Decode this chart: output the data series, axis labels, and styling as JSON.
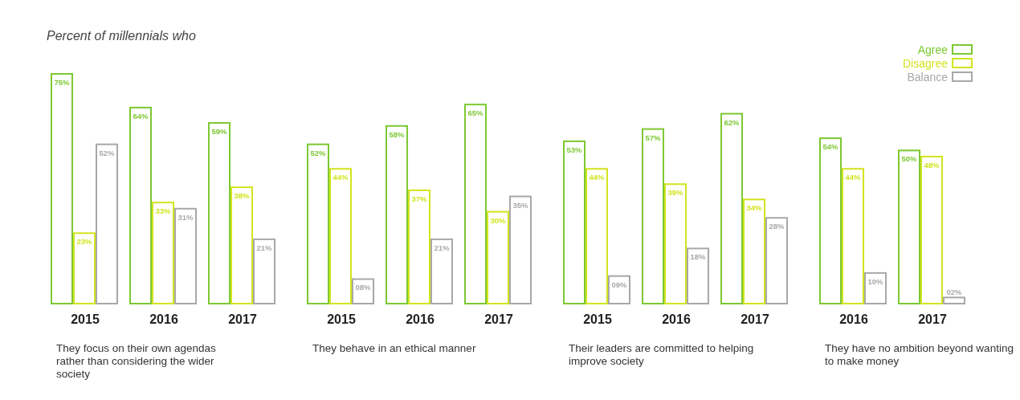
{
  "chart_data": [
    {
      "type": "bar",
      "title": "Percent of millennials who",
      "xlabel": "They focus on their own agendas rather than considering the wider society",
      "legend": "top right",
      "categories": [
        "2015",
        "2016",
        "2017"
      ],
      "series": [
        {
          "name": "Agree",
          "color": "#7dc832",
          "values": [
            75,
            64,
            59
          ],
          "value_labels": [
            "75%",
            "64%",
            "59%"
          ]
        },
        {
          "name": "Disagree",
          "color": "#d2e41e",
          "values": [
            23,
            33,
            38
          ],
          "value_labels": [
            "23%",
            "33%",
            "38%"
          ]
        },
        {
          "name": "Balance",
          "color": "#a8a8a8",
          "values": [
            52,
            31,
            21
          ],
          "value_labels": [
            "52%",
            "31%",
            "21%"
          ]
        }
      ]
    },
    {
      "type": "bar",
      "xlabel": "They behave in an ethical manner",
      "categories": [
        "2015",
        "2016",
        "2017"
      ],
      "series": [
        {
          "color": "#7dc832",
          "values": [
            52,
            58,
            65
          ],
          "value_labels": [
            "52%",
            "58%",
            "65%"
          ]
        },
        {
          "color": "#d2e41e",
          "values": [
            44,
            37,
            30
          ],
          "value_labels": [
            "44%",
            "37%",
            "30%"
          ]
        },
        {
          "color": "#a8a8a8",
          "values": [
            8,
            21,
            35
          ],
          "value_labels": [
            "08%",
            "21%",
            "35%"
          ]
        }
      ]
    },
    {
      "type": "bar",
      "xlabel": "Their leaders are committed to helping improve society",
      "categories": [
        "2015",
        "2016",
        "2017"
      ],
      "series": [
        {
          "color": "#7dc832",
          "values": [
            53,
            57,
            62
          ],
          "value_labels": [
            "53%",
            "57%",
            "62%"
          ]
        },
        {
          "color": "#d2e41e",
          "values": [
            44,
            39,
            34
          ],
          "value_labels": [
            "44%",
            "39%",
            "34%"
          ]
        },
        {
          "color": "#a8a8a8",
          "values": [
            9,
            18,
            28
          ],
          "value_labels": [
            "09%",
            "18%",
            "28%"
          ]
        }
      ]
    },
    {
      "type": "bar",
      "xlabel": "They have no ambition beyond wanting to make money",
      "categories": [
        "2016",
        "2017"
      ],
      "series": [
        {
          "color": "#7dc832",
          "values": [
            54,
            50
          ],
          "value_labels": [
            "54%",
            "50%"
          ]
        },
        {
          "color": "#d2e41e",
          "values": [
            44,
            48
          ],
          "value_labels": [
            "44%",
            "48%"
          ]
        },
        {
          "color": "#a8a8a8",
          "values": [
            10,
            2
          ],
          "value_labels": [
            "10%",
            "02%"
          ]
        }
      ]
    }
  ]
}
